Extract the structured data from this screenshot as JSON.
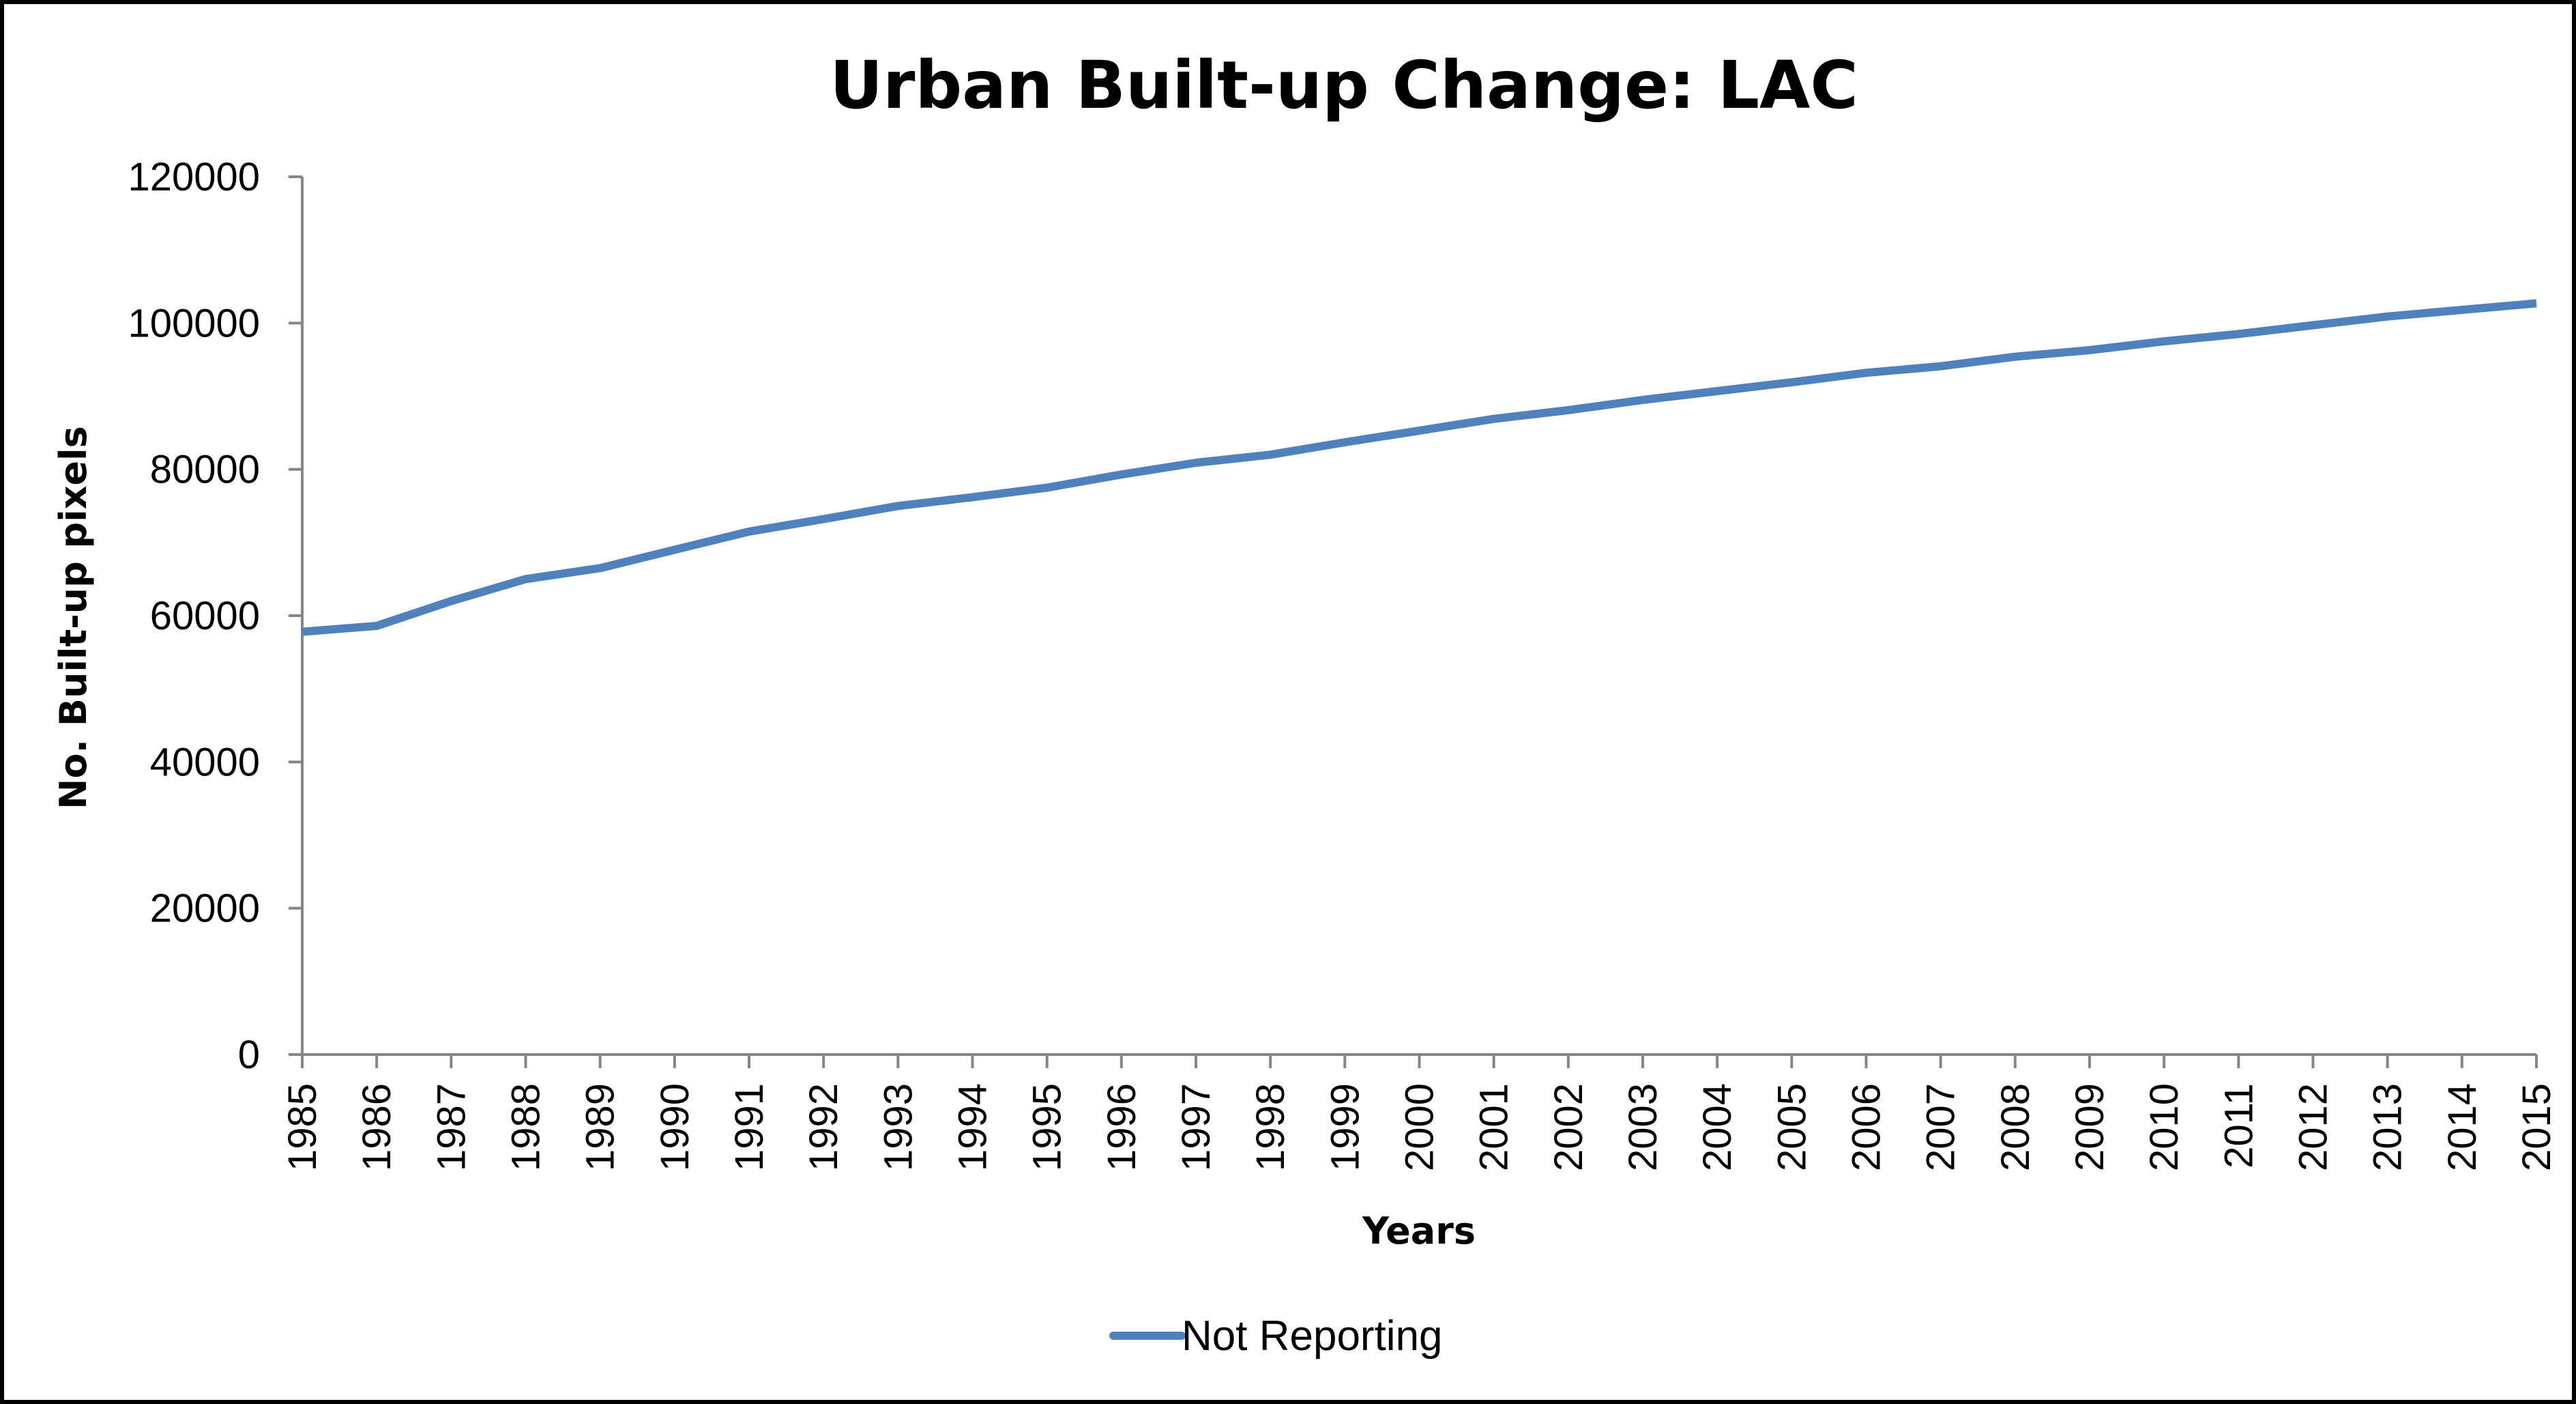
{
  "chart_data": {
    "type": "line",
    "title": "Urban Built-up Change: LAC",
    "xlabel": "Years",
    "ylabel": "No. Built-up pixels",
    "ylim": [
      0,
      120000
    ],
    "yticks": [
      "0",
      "20000",
      "40000",
      "60000",
      "80000",
      "100000",
      "120000"
    ],
    "categories": [
      "1985",
      "1986",
      "1987",
      "1988",
      "1989",
      "1990",
      "1991",
      "1992",
      "1993",
      "1994",
      "1995",
      "1996",
      "1997",
      "1998",
      "1999",
      "2000",
      "2001",
      "2002",
      "2003",
      "2004",
      "2005",
      "2006",
      "2007",
      "2008",
      "2009",
      "2010",
      "2011",
      "2012",
      "2013",
      "2014",
      "2015"
    ],
    "series": [
      {
        "name": "Not Reporting",
        "color": "#4F81BD",
        "values": [
          57800,
          58600,
          62000,
          65000,
          66500,
          69000,
          71500,
          73200,
          75000,
          76200,
          77500,
          79300,
          80900,
          82000,
          83700,
          85300,
          86900,
          88100,
          89500,
          90700,
          91900,
          93200,
          94100,
          95400,
          96300,
          97500,
          98500,
          99700,
          100900,
          101800,
          102700
        ]
      }
    ],
    "grid": false,
    "legend_position": "bottom"
  }
}
